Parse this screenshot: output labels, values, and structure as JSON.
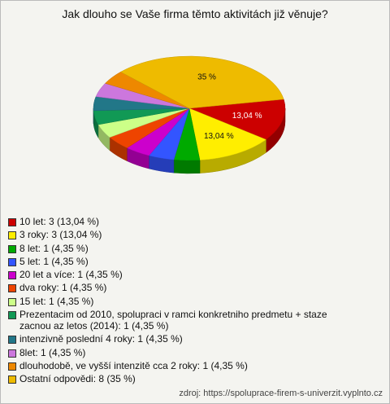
{
  "chart_data": {
    "type": "pie3d",
    "title": "Jak dlouho se Vaše firma těmto aktivitách již věnuje?",
    "categories": [
      "10 let: 3 (13,04 %)",
      "3 roky: 3 (13,04 %)",
      "8 let: 1 (4,35 %)",
      "5  let: 1 (4,35 %)",
      "20 let a více: 1 (4,35 %)",
      "dva roky: 1 (4,35 %)",
      "15 let: 1 (4,35 %)",
      "Prezentacim od 2010, spolupraci v ramci konkretniho predmetu + staze zacnou az letos (2014): 1 (4,35 %)",
      "intenzivně poslední 4 roky: 1 (4,35 %)",
      "8let: 1 (4,35 %)",
      "dlouhodobě, ve vyšší intenzitě cca 2 roky: 1 (4,35 %)",
      "Ostatní odpovědi: 8 (35 %)"
    ],
    "values": [
      13.04,
      13.04,
      4.35,
      4.35,
      4.35,
      4.35,
      4.35,
      4.35,
      4.35,
      4.35,
      4.35,
      35
    ],
    "value_labels": [
      "13,04 %",
      "13,04 %",
      null,
      null,
      null,
      null,
      null,
      null,
      null,
      null,
      null,
      "35 %"
    ],
    "colors": [
      "#cc0000",
      "#ffee00",
      "#00aa00",
      "#3355ff",
      "#cc00cc",
      "#ee4400",
      "#ccff88",
      "#119955",
      "#227788",
      "#cc77dd",
      "#ee8800",
      "#eebb00"
    ],
    "source": "zdroj: https://spoluprace-firem-s-univerzit.vyplnto.cz"
  }
}
